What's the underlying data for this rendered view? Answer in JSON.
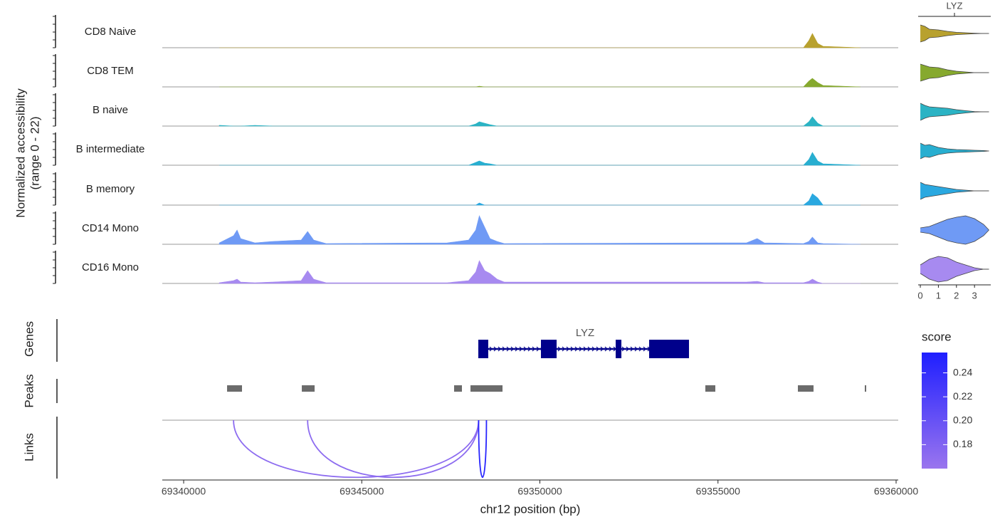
{
  "chart_data": {
    "type": "coverage",
    "ylabel": [
      "Normalized accessibility",
      "(range 0 - 22)"
    ],
    "ylim": [
      0,
      22
    ],
    "xlim": [
      69339400,
      69360060
    ],
    "xticks": [
      69340000,
      69345000,
      69350000,
      69355000,
      69360000
    ],
    "xlabel": "chr12 position (bp)",
    "x": [
      69341000,
      69341400,
      69341500,
      69341600,
      69342000,
      69342500,
      69343300,
      69343480,
      69343650,
      69344000,
      69347400,
      69348000,
      69348200,
      69348300,
      69348450,
      69348600,
      69348800,
      69349000,
      69355800,
      69356100,
      69356300,
      69357400,
      69357550,
      69357650,
      69357800,
      69357950,
      69359000
    ],
    "series": [
      {
        "name": "CD8 Naive",
        "color": "#b8a12e",
        "values": [
          0,
          0,
          0,
          0,
          0,
          0,
          0,
          0,
          0,
          0,
          0,
          0,
          0,
          0,
          0,
          0,
          0,
          0,
          0,
          0,
          0,
          0,
          5,
          10,
          3,
          1,
          0
        ],
        "violin": [
          0.6,
          0.5,
          0.3,
          0.25,
          0.15,
          0.08,
          0.05,
          0.02,
          0,
          0
        ]
      },
      {
        "name": "CD8 TEM",
        "color": "#86a92e",
        "values": [
          0,
          0,
          0,
          0,
          0,
          0,
          0,
          0,
          0,
          0,
          0,
          0,
          0,
          0.5,
          0,
          0,
          0,
          0,
          0,
          0,
          0,
          0,
          4,
          6,
          3,
          1,
          0
        ],
        "violin": [
          0.6,
          0.5,
          0.4,
          0.35,
          0.2,
          0.1,
          0.05,
          0,
          0,
          0
        ]
      },
      {
        "name": "B naive",
        "color": "#2bb3c4",
        "values": [
          0.5,
          0,
          0,
          0,
          0.5,
          0,
          0,
          0,
          0,
          0,
          0,
          0,
          1.5,
          3,
          2,
          1,
          0,
          0,
          0,
          0,
          0,
          0,
          3,
          6.5,
          2,
          0,
          0
        ],
        "violin": [
          0.6,
          0.45,
          0.35,
          0.3,
          0.25,
          0.15,
          0.08,
          0.02,
          0,
          0
        ]
      },
      {
        "name": "B intermediate",
        "color": "#28aed0",
        "values": [
          0,
          0,
          0,
          0,
          0,
          0,
          0,
          0,
          0,
          0,
          0,
          0,
          2,
          3,
          1.5,
          1,
          0,
          0,
          0,
          0,
          0,
          0,
          4,
          9,
          3,
          1,
          0
        ],
        "violin": [
          0.55,
          0.4,
          0.45,
          0.25,
          0.15,
          0.1,
          0.08,
          0.05,
          0.03,
          0
        ]
      },
      {
        "name": "B memory",
        "color": "#2aa8e0",
        "values": [
          0,
          0,
          0,
          0,
          0,
          0,
          0,
          0,
          0,
          0,
          0,
          0,
          0,
          1.5,
          0,
          0,
          0,
          0,
          0,
          0,
          0,
          0,
          3,
          8,
          5,
          0,
          0
        ],
        "violin": [
          0.6,
          0.45,
          0.4,
          0.3,
          0.2,
          0.1,
          0.05,
          0,
          0,
          0
        ]
      },
      {
        "name": "CD14 Mono",
        "color": "#6f9af5",
        "values": [
          1,
          6,
          10,
          4,
          1,
          2,
          3,
          9,
          3,
          0.5,
          1,
          3,
          10,
          20,
          12,
          4,
          2,
          0.5,
          1,
          4,
          1,
          0.5,
          2,
          5,
          1,
          0.5,
          0
        ],
        "violin": [
          0.15,
          0.2,
          0.25,
          0.5,
          0.75,
          0.9,
          1.0,
          0.8,
          0.4,
          0
        ]
      },
      {
        "name": "CD16 Mono",
        "color": "#a78af0",
        "values": [
          0.5,
          2,
          3,
          1,
          0.5,
          1,
          2,
          9,
          3,
          0.5,
          0.5,
          2,
          8,
          16,
          9,
          7,
          3,
          1,
          1,
          1.5,
          0.5,
          0.5,
          1.5,
          3,
          1,
          0,
          0
        ],
        "violin": [
          0.3,
          0.5,
          0.7,
          0.9,
          0.8,
          0.5,
          0.3,
          0.1,
          0,
          0
        ]
      }
    ],
    "violin": {
      "title": "LYZ",
      "xlim": [
        -0.12,
        3.9
      ],
      "xticks": [
        0,
        1,
        2,
        3
      ],
      "y": [
        0,
        0.25,
        0.5,
        1,
        1.5,
        2,
        2.5,
        3,
        3.5,
        3.8
      ]
    },
    "genes": {
      "label": "Genes",
      "color": "#00008b",
      "items": [
        {
          "name": "LYZ",
          "exons": [
            [
              69348272,
              69348551
            ],
            [
              69350030,
              69350470
            ],
            [
              69352128,
              69352288
            ],
            [
              69353067,
              69354186
            ]
          ]
        }
      ]
    },
    "peaks": {
      "label": "Peaks",
      "color": "#6b6b6b",
      "regions": [
        [
          69341219,
          69341638
        ],
        [
          69343317,
          69343676
        ],
        [
          69347592,
          69347812
        ],
        [
          69348052,
          69348951
        ],
        [
          69354645,
          69354925
        ],
        [
          69357243,
          69357682
        ],
        [
          69359121,
          69359161
        ]
      ]
    },
    "links": {
      "label": "Links",
      "items": [
        {
          "start": 69341400,
          "end": 69348280,
          "score": 0.17
        },
        {
          "start": 69343480,
          "end": 69348280,
          "score": 0.17
        },
        {
          "start": 69348280,
          "end": 69348500,
          "score": 0.25
        }
      ]
    },
    "score_legend": {
      "title": "score",
      "lim": [
        0.16,
        0.257
      ],
      "ticks": [
        {
          "value": 0.18,
          "label": "0.18"
        },
        {
          "value": 0.2,
          "label": "0.20"
        },
        {
          "value": 0.22,
          "label": "0.22"
        },
        {
          "value": 0.24,
          "label": "0.24"
        }
      ],
      "colors": [
        "#9a75ee",
        "#1f1fff"
      ]
    }
  }
}
